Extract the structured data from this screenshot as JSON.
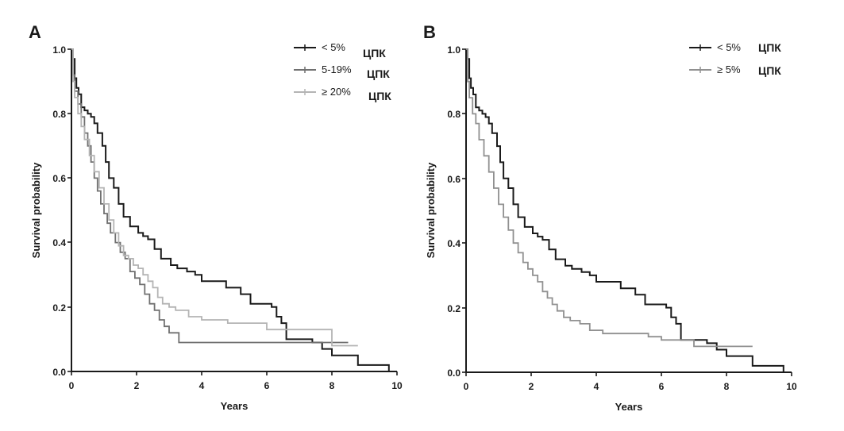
{
  "chart_data": [
    {
      "panel": "A",
      "type": "line",
      "xlabel": "Years",
      "ylabel": "Survival probability",
      "xlim": [
        0,
        10
      ],
      "ylim": [
        0,
        1.0
      ],
      "x_ticks": [
        0,
        2,
        4,
        6,
        8,
        10
      ],
      "y_ticks": [
        "0.0",
        "0.2",
        "0.4",
        "0.6",
        "0.8",
        "1.0"
      ],
      "legend_position": "top-right",
      "series": [
        {
          "name": "< 5%",
          "legend_suffix": "ЦПК",
          "color": "#1a1a1a",
          "x": [
            0,
            0.05,
            0.1,
            0.15,
            0.22,
            0.3,
            0.4,
            0.5,
            0.6,
            0.7,
            0.8,
            0.95,
            1.05,
            1.15,
            1.3,
            1.45,
            1.6,
            1.8,
            2.05,
            2.2,
            2.35,
            2.55,
            2.75,
            3.05,
            3.25,
            3.55,
            3.8,
            4.0,
            4.75,
            4.85,
            5.2,
            5.5,
            6.15,
            6.3,
            6.45,
            6.6,
            7.4,
            7.7,
            8.0,
            8.8,
            9.0,
            9.6,
            9.75
          ],
          "y": [
            1.0,
            0.97,
            0.91,
            0.88,
            0.86,
            0.82,
            0.81,
            0.8,
            0.79,
            0.77,
            0.74,
            0.7,
            0.65,
            0.6,
            0.57,
            0.52,
            0.48,
            0.45,
            0.43,
            0.42,
            0.41,
            0.38,
            0.35,
            0.33,
            0.32,
            0.31,
            0.3,
            0.28,
            0.26,
            0.26,
            0.24,
            0.21,
            0.2,
            0.17,
            0.15,
            0.1,
            0.09,
            0.07,
            0.05,
            0.02,
            0.02,
            0.02,
            0.0
          ]
        },
        {
          "name": "5-19%",
          "legend_suffix": "ЦПК",
          "color": "#707070",
          "x": [
            0,
            0.05,
            0.1,
            0.2,
            0.3,
            0.4,
            0.5,
            0.6,
            0.7,
            0.8,
            0.9,
            1.0,
            1.1,
            1.2,
            1.35,
            1.5,
            1.65,
            1.8,
            1.95,
            2.1,
            2.25,
            2.4,
            2.55,
            2.7,
            2.85,
            3.0,
            3.15,
            3.3,
            4.0,
            5.5,
            6.0,
            8.5
          ],
          "y": [
            1.0,
            0.92,
            0.87,
            0.83,
            0.79,
            0.74,
            0.7,
            0.65,
            0.6,
            0.56,
            0.52,
            0.49,
            0.46,
            0.43,
            0.4,
            0.37,
            0.35,
            0.31,
            0.29,
            0.27,
            0.24,
            0.21,
            0.19,
            0.16,
            0.14,
            0.12,
            0.12,
            0.09,
            0.09,
            0.09,
            0.09,
            0.09
          ]
        },
        {
          "name": "≥ 20%",
          "legend_suffix": "ЦПК",
          "color": "#b4b4b4",
          "x": [
            0,
            0.05,
            0.1,
            0.2,
            0.3,
            0.4,
            0.55,
            0.7,
            0.85,
            1.0,
            1.15,
            1.3,
            1.45,
            1.6,
            1.75,
            1.9,
            2.05,
            2.2,
            2.35,
            2.5,
            2.65,
            2.8,
            3.0,
            3.2,
            3.6,
            4.0,
            4.8,
            5.6,
            6.0,
            8.0,
            8.8
          ],
          "y": [
            1.0,
            0.9,
            0.85,
            0.8,
            0.76,
            0.72,
            0.67,
            0.62,
            0.57,
            0.52,
            0.47,
            0.43,
            0.39,
            0.36,
            0.35,
            0.33,
            0.32,
            0.3,
            0.28,
            0.26,
            0.23,
            0.21,
            0.2,
            0.19,
            0.17,
            0.16,
            0.15,
            0.15,
            0.13,
            0.08,
            0.08
          ]
        }
      ]
    },
    {
      "panel": "B",
      "type": "line",
      "xlabel": "Years",
      "ylabel": "Survival probability",
      "xlim": [
        0,
        10
      ],
      "ylim": [
        0,
        1.0
      ],
      "x_ticks": [
        0,
        2,
        4,
        6,
        8,
        10
      ],
      "y_ticks": [
        "0.0",
        "0.2",
        "0.4",
        "0.6",
        "0.8",
        "1.0"
      ],
      "legend_position": "top-right",
      "series": [
        {
          "name": "< 5%",
          "legend_suffix": "ЦПК",
          "color": "#1a1a1a",
          "x": [
            0,
            0.05,
            0.1,
            0.15,
            0.22,
            0.3,
            0.4,
            0.5,
            0.6,
            0.7,
            0.8,
            0.95,
            1.05,
            1.15,
            1.3,
            1.45,
            1.6,
            1.8,
            2.05,
            2.2,
            2.35,
            2.55,
            2.75,
            3.05,
            3.25,
            3.55,
            3.8,
            4.0,
            4.75,
            4.85,
            5.2,
            5.5,
            6.15,
            6.3,
            6.45,
            6.6,
            7.4,
            7.7,
            8.0,
            8.8,
            9.0,
            9.6,
            9.75
          ],
          "y": [
            1.0,
            0.97,
            0.91,
            0.88,
            0.86,
            0.82,
            0.81,
            0.8,
            0.79,
            0.77,
            0.74,
            0.7,
            0.65,
            0.6,
            0.57,
            0.52,
            0.48,
            0.45,
            0.43,
            0.42,
            0.41,
            0.38,
            0.35,
            0.33,
            0.32,
            0.31,
            0.3,
            0.28,
            0.26,
            0.26,
            0.24,
            0.21,
            0.2,
            0.17,
            0.15,
            0.1,
            0.09,
            0.07,
            0.05,
            0.02,
            0.02,
            0.02,
            0.0
          ]
        },
        {
          "name": "≥ 5%",
          "legend_suffix": "ЦПК",
          "color": "#909090",
          "x": [
            0,
            0.05,
            0.1,
            0.2,
            0.3,
            0.4,
            0.55,
            0.7,
            0.85,
            1.0,
            1.15,
            1.3,
            1.45,
            1.6,
            1.75,
            1.9,
            2.05,
            2.2,
            2.35,
            2.5,
            2.65,
            2.8,
            3.0,
            3.2,
            3.5,
            3.8,
            4.2,
            4.5,
            5.0,
            5.6,
            6.0,
            7.0,
            8.0,
            8.8
          ],
          "y": [
            1.0,
            0.9,
            0.85,
            0.8,
            0.77,
            0.72,
            0.67,
            0.62,
            0.57,
            0.52,
            0.48,
            0.44,
            0.4,
            0.37,
            0.34,
            0.32,
            0.3,
            0.28,
            0.25,
            0.23,
            0.21,
            0.19,
            0.17,
            0.16,
            0.15,
            0.13,
            0.12,
            0.12,
            0.12,
            0.11,
            0.1,
            0.08,
            0.08,
            0.08
          ]
        }
      ]
    }
  ]
}
